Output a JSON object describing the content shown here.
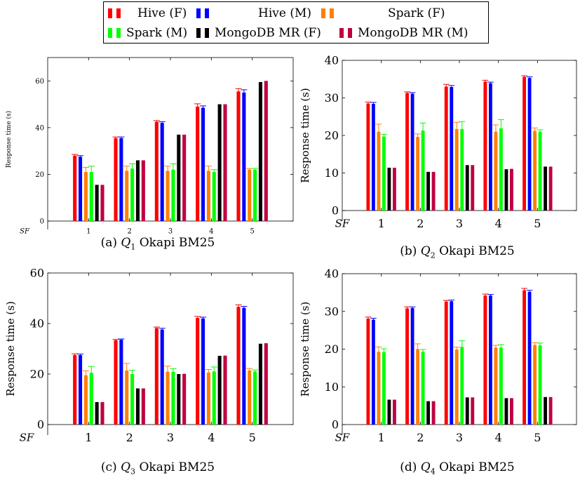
{
  "legend": [
    {
      "label": "Hive (F)",
      "color": "#ff0000"
    },
    {
      "label": "Hive (M)",
      "color": "#0000ff"
    },
    {
      "label": "Spark (F)",
      "color": "#ff8000"
    },
    {
      "label": "Spark (M)",
      "color": "#00ff00"
    },
    {
      "label": "MongoDB MR (F)",
      "color": "#000000"
    },
    {
      "label": "MongoDB MR (M)",
      "color": "#bf0040"
    }
  ],
  "chart_data": [
    {
      "type": "bar",
      "caption": {
        "prefix": "(a) ",
        "q": "Q",
        "sub": "1",
        "suffix": " Okapi BM25"
      },
      "xlabel": "SF",
      "ylabel": "Response time (s)",
      "ylim": [
        0,
        70
      ],
      "yticks": [
        "0",
        "20",
        "40",
        "60"
      ],
      "categories": [
        "1",
        "2",
        "3",
        "4",
        "5"
      ],
      "series": [
        {
          "name": "Hive (F)",
          "values": [
            28,
            35.5,
            42.5,
            49,
            55.5
          ],
          "errors": [
            0.5,
            0.5,
            0.5,
            1.2,
            1.2
          ]
        },
        {
          "name": "Hive (M)",
          "values": [
            27.5,
            35.5,
            42,
            48.5,
            55
          ],
          "errors": [
            0.5,
            0.5,
            0.5,
            0.8,
            1.2
          ]
        },
        {
          "name": "Spark (F)",
          "values": [
            21,
            21.5,
            21.5,
            21.5,
            22
          ],
          "errors": [
            2,
            2,
            2,
            2,
            0.5
          ]
        },
        {
          "name": "Spark (M)",
          "values": [
            21,
            22.5,
            22,
            21,
            22
          ],
          "errors": [
            2.5,
            2,
            2.5,
            1,
            0.5
          ]
        },
        {
          "name": "MongoDB MR (F)",
          "values": [
            15.5,
            26,
            37,
            50,
            59.5
          ],
          "errors": [
            0,
            0,
            0,
            0,
            0
          ]
        },
        {
          "name": "MongoDB MR (M)",
          "values": [
            15.5,
            26,
            37,
            50,
            60
          ],
          "errors": [
            0,
            0,
            0,
            0,
            0
          ]
        }
      ]
    },
    {
      "type": "bar",
      "caption": {
        "prefix": "(b) ",
        "q": "Q",
        "sub": "2",
        "suffix": " Okapi BM25"
      },
      "xlabel": "SF",
      "ylabel": "Response time (s)",
      "ylim": [
        0,
        40
      ],
      "yticks": [
        "0",
        "10",
        "20",
        "30",
        "40"
      ],
      "categories": [
        "1",
        "2",
        "3",
        "4",
        "5"
      ],
      "series": [
        {
          "name": "Hive (F)",
          "values": [
            28.5,
            31.3,
            33,
            34.3,
            35.6
          ],
          "errors": [
            0.4,
            0.3,
            0.6,
            0.4,
            0.3
          ]
        },
        {
          "name": "Hive (M)",
          "values": [
            28.4,
            31.1,
            32.9,
            33.9,
            35.3
          ],
          "errors": [
            0.4,
            0.3,
            0.4,
            0.3,
            0.3
          ]
        },
        {
          "name": "Spark (F)",
          "values": [
            21,
            19.6,
            21.7,
            21,
            21.2
          ],
          "errors": [
            2,
            0.8,
            1.8,
            1.8,
            0.8
          ]
        },
        {
          "name": "Spark (M)",
          "values": [
            19.7,
            21.3,
            21.7,
            21.9,
            21
          ],
          "errors": [
            0.6,
            2,
            2,
            2.3,
            0.5
          ]
        },
        {
          "name": "MongoDB MR (F)",
          "values": [
            11.4,
            10.3,
            12.1,
            11,
            11.7
          ],
          "errors": [
            0,
            0,
            0,
            0,
            0
          ]
        },
        {
          "name": "MongoDB MR (M)",
          "values": [
            11.4,
            10.3,
            12.1,
            11.1,
            11.7
          ],
          "errors": [
            0,
            0,
            0,
            0,
            0
          ]
        }
      ]
    },
    {
      "type": "bar",
      "caption": {
        "prefix": "(c) ",
        "q": "Q",
        "sub": "3",
        "suffix": " Okapi BM25"
      },
      "xlabel": "SF",
      "ylabel": "Response time (s)",
      "ylim": [
        0,
        60
      ],
      "yticks": [
        "0",
        "20",
        "40",
        "60"
      ],
      "categories": [
        "1",
        "2",
        "3",
        "4",
        "5"
      ],
      "series": [
        {
          "name": "Hive (F)",
          "values": [
            27.5,
            33.4,
            38.2,
            42.2,
            46.6
          ],
          "errors": [
            0.5,
            0.3,
            0.4,
            0.6,
            0.8
          ]
        },
        {
          "name": "Hive (M)",
          "values": [
            27.5,
            33.6,
            37.6,
            42,
            46.2
          ],
          "errors": [
            0.4,
            0.3,
            0.5,
            0.5,
            0.6
          ]
        },
        {
          "name": "Spark (F)",
          "values": [
            19.5,
            21.4,
            20.9,
            20.6,
            21.4
          ],
          "errors": [
            1.8,
            2.8,
            2.2,
            1.2,
            0.8
          ]
        },
        {
          "name": "Spark (M)",
          "values": [
            20.5,
            20,
            20.9,
            21,
            21
          ],
          "errors": [
            2.5,
            1.5,
            1.2,
            1.8,
            0.6
          ]
        },
        {
          "name": "MongoDB MR (F)",
          "values": [
            8.9,
            14.3,
            20,
            27.2,
            32
          ],
          "errors": [
            0,
            0,
            0,
            0,
            0
          ]
        },
        {
          "name": "MongoDB MR (M)",
          "values": [
            8.9,
            14.3,
            20.1,
            27.3,
            32.2
          ],
          "errors": [
            0,
            0,
            0,
            0,
            0
          ]
        }
      ]
    },
    {
      "type": "bar",
      "caption": {
        "prefix": "(d) ",
        "q": "Q",
        "sub": "4",
        "suffix": " Okapi BM25"
      },
      "xlabel": "SF",
      "ylabel": "Response time (s)",
      "ylim": [
        0,
        40
      ],
      "yticks": [
        "0",
        "10",
        "20",
        "30",
        "40"
      ],
      "categories": [
        "1",
        "2",
        "3",
        "4",
        "5"
      ],
      "series": [
        {
          "name": "Hive (F)",
          "values": [
            28.1,
            30.8,
            32.6,
            34.2,
            35.6
          ],
          "errors": [
            0.4,
            0.4,
            0.3,
            0.4,
            0.5
          ]
        },
        {
          "name": "Hive (M)",
          "values": [
            27.8,
            30.9,
            32.7,
            34.2,
            35.2
          ],
          "errors": [
            0.4,
            0.3,
            0.3,
            0.3,
            0.4
          ]
        },
        {
          "name": "Spark (F)",
          "values": [
            19.3,
            20,
            19.9,
            20.4,
            21.1
          ],
          "errors": [
            1.3,
            1.4,
            0.6,
            0.6,
            0.6
          ]
        },
        {
          "name": "Spark (M)",
          "values": [
            19.2,
            19.3,
            20.6,
            20.4,
            21
          ],
          "errors": [
            0.9,
            0.6,
            1.6,
            0.8,
            0.6
          ]
        },
        {
          "name": "MongoDB MR (F)",
          "values": [
            6.6,
            6.2,
            7.2,
            7,
            7.3
          ],
          "errors": [
            0,
            0,
            0,
            0,
            0
          ]
        },
        {
          "name": "MongoDB MR (M)",
          "values": [
            6.6,
            6.2,
            7.2,
            7,
            7.3
          ],
          "errors": [
            0,
            0,
            0,
            0,
            0
          ]
        }
      ]
    }
  ]
}
